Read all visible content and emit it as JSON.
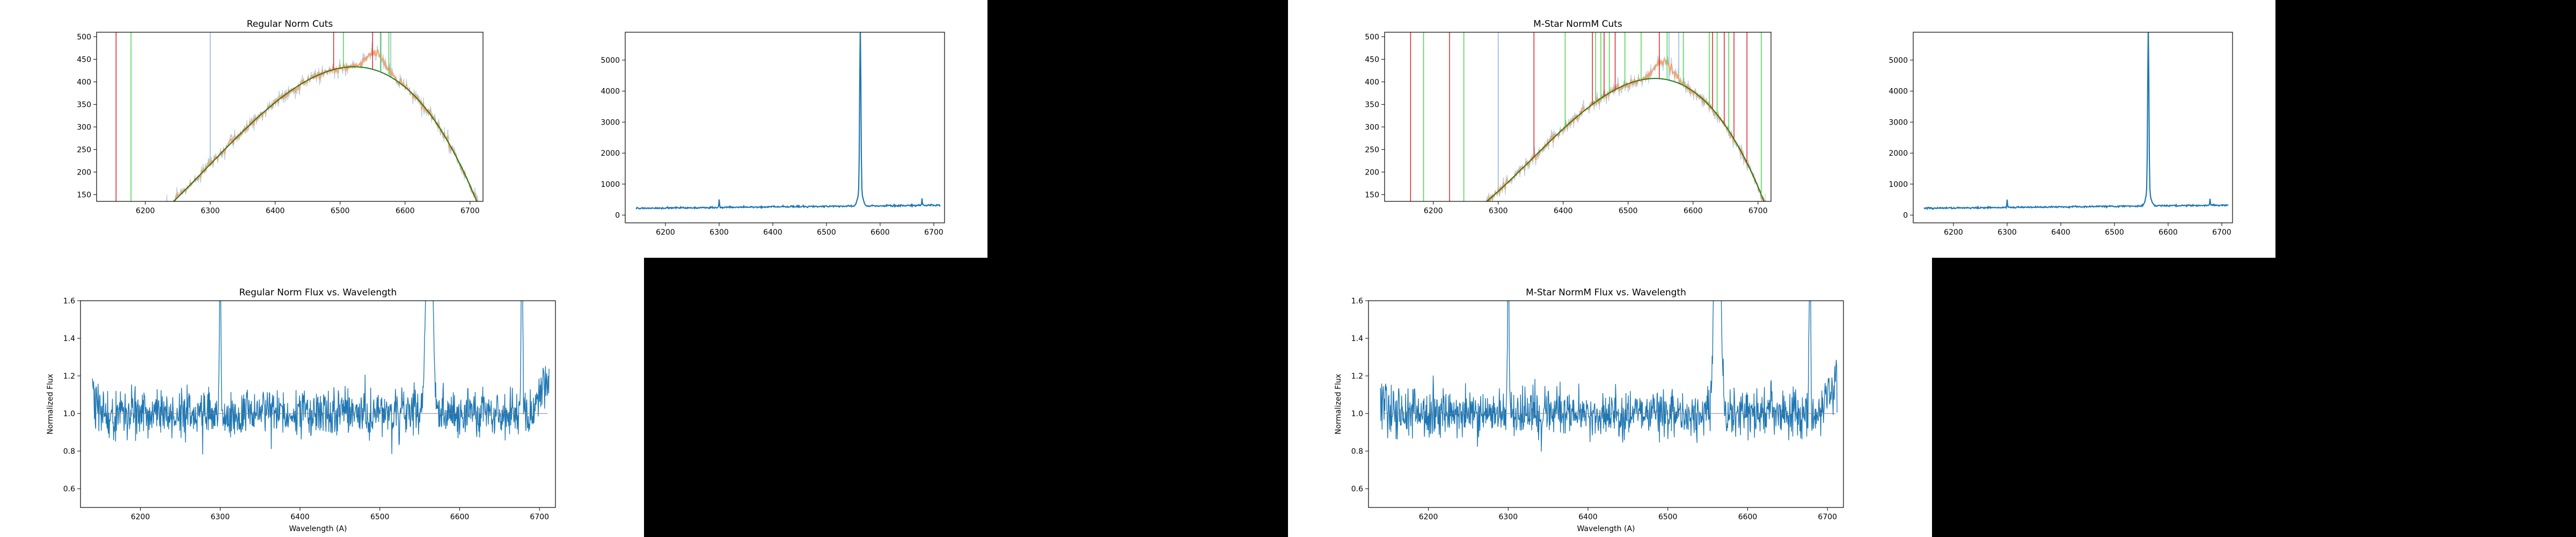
{
  "panels": [
    {
      "name": "regular-norm-panel"
    },
    {
      "name": "m-star-norm-panel"
    }
  ],
  "chart_data": [
    {
      "id": "regular-cuts",
      "type": "line",
      "title": "Regular Norm Cuts",
      "xlabel": "",
      "ylabel": "",
      "xlim": [
        6125,
        6720
      ],
      "ylim": [
        135,
        510
      ],
      "xticks": [
        6200,
        6300,
        6400,
        6500,
        6600,
        6700
      ],
      "yticks": [
        150,
        200,
        250,
        300,
        350,
        400,
        450,
        500
      ],
      "fit": {
        "coeffs": [
          5,
          0.65,
          0.0049,
          -9.62e-06
        ],
        "x0": 6125,
        "range": [
          6145,
          6712
        ],
        "color": "#1e7a1e"
      },
      "cut_lines": {
        "red": [
          6155,
          6490,
          6550
        ],
        "green": [
          6178,
          6505,
          6562,
          6575
        ]
      },
      "raw_color": "#a9c8df",
      "kept_color": "#f2a06b",
      "grid": false,
      "legend": "none"
    },
    {
      "id": "regular-spectrum",
      "type": "line",
      "title": "",
      "xlabel": "",
      "ylabel": "",
      "xlim": [
        6125,
        6720
      ],
      "ylim": [
        -250,
        5900
      ],
      "xticks": [
        6200,
        6300,
        6400,
        6500,
        6600,
        6700
      ],
      "yticks": [
        0,
        1000,
        2000,
        3000,
        4000,
        5000
      ],
      "peaks": [
        {
          "x": 6563,
          "y": 5600
        },
        {
          "x": 6300,
          "y": 500
        },
        {
          "x": 6678,
          "y": 450
        }
      ],
      "color": "#1f77b4",
      "grid": false,
      "legend": "none"
    },
    {
      "id": "regular-flux",
      "type": "line",
      "title": "Regular Norm Flux vs. Wavelength",
      "xlabel": "Wavelength (A)",
      "ylabel": "Normalized Flux",
      "xlim": [
        6125,
        6720
      ],
      "ylim": [
        0.5,
        1.6
      ],
      "xticks": [
        6200,
        6300,
        6400,
        6500,
        6600,
        6700
      ],
      "yticks": [
        0.6,
        0.8,
        1.0,
        1.2,
        1.4,
        1.6
      ],
      "color": "#1f77b4",
      "grid": false,
      "legend": "none"
    },
    {
      "id": "mstar-cuts",
      "type": "line",
      "title": "M-Star NormM Cuts",
      "xlabel": "",
      "ylabel": "",
      "xlim": [
        6125,
        6720
      ],
      "ylim": [
        135,
        510
      ],
      "xticks": [
        6200,
        6300,
        6400,
        6500,
        6600,
        6700
      ],
      "yticks": [
        150,
        200,
        250,
        300,
        350,
        400,
        450,
        500
      ],
      "fit": {
        "coeffs": [
          60,
          -0.6,
          0.0089,
          -1.31e-05
        ],
        "x0": 6125,
        "range": [
          6138,
          6712
        ],
        "color": "#1e7a1e"
      },
      "cut_lines": {
        "red": [
          6165,
          6225,
          6355,
          6445,
          6463,
          6480,
          6548,
          6630,
          6648,
          6663,
          6683
        ],
        "green": [
          6185,
          6247,
          6403,
          6450,
          6458,
          6471,
          6495,
          6520,
          6560,
          6585,
          6625,
          6637,
          6655,
          6705
        ]
      },
      "raw_color": "#a9c8df",
      "kept_color": "#f2a06b",
      "grid": false,
      "legend": "none"
    },
    {
      "id": "mstar-spectrum",
      "type": "line",
      "title": "",
      "xlabel": "",
      "ylabel": "",
      "xlim": [
        6125,
        6720
      ],
      "ylim": [
        -250,
        5900
      ],
      "xticks": [
        6200,
        6300,
        6400,
        6500,
        6600,
        6700
      ],
      "yticks": [
        0,
        1000,
        2000,
        3000,
        4000,
        5000
      ],
      "peaks": [
        {
          "x": 6563,
          "y": 5600
        },
        {
          "x": 6300,
          "y": 500
        },
        {
          "x": 6678,
          "y": 450
        }
      ],
      "color": "#1f77b4",
      "grid": false,
      "legend": "none"
    },
    {
      "id": "mstar-flux",
      "type": "line",
      "title": "M-Star NormM Flux vs. Wavelength",
      "xlabel": "Wavelength (A)",
      "ylabel": "Normalized Flux",
      "xlim": [
        6125,
        6720
      ],
      "ylim": [
        0.5,
        1.6
      ],
      "xticks": [
        6200,
        6300,
        6400,
        6500,
        6600,
        6700
      ],
      "yticks": [
        0.6,
        0.8,
        1.0,
        1.2,
        1.4,
        1.6
      ],
      "color": "#1f77b4",
      "grid": false,
      "legend": "none"
    }
  ]
}
